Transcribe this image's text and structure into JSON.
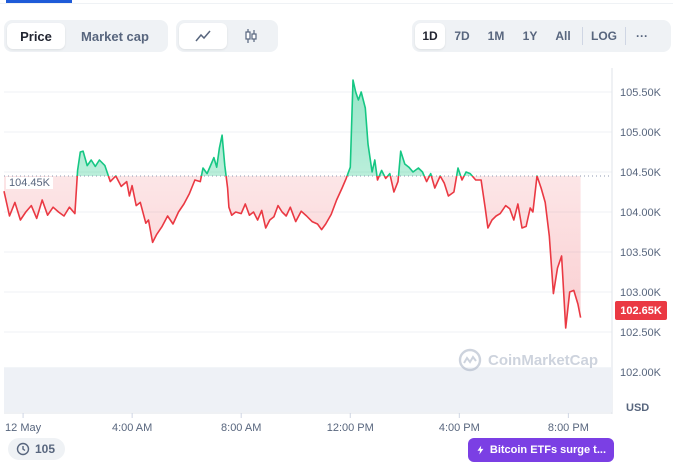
{
  "tabs": {
    "metric": [
      {
        "label": "Price",
        "active": true
      },
      {
        "label": "Market cap",
        "active": false
      }
    ],
    "chart_type_icons": [
      "line-chart-icon",
      "candlestick-icon"
    ],
    "ranges": [
      {
        "label": "1D",
        "active": true
      },
      {
        "label": "7D",
        "active": false
      },
      {
        "label": "1M",
        "active": false
      },
      {
        "label": "1Y",
        "active": false
      },
      {
        "label": "All",
        "active": false
      }
    ],
    "log_label": "LOG",
    "more_label": "···"
  },
  "price_tag": "102.65K",
  "open_tag": "104.45K",
  "currency_label": "USD",
  "watermark": "CoinMarketCap",
  "comments_count": "105",
  "news_pill": "Bitcoin ETFs surge t...",
  "colors": {
    "up": "#16c784",
    "down": "#ea3943",
    "accent": "#7b3fe4"
  },
  "chart_data": {
    "type": "line",
    "baseline": 104450,
    "ylim": [
      101500,
      105800
    ],
    "y_ticks": [
      {
        "label": "105.50K",
        "v": 105500
      },
      {
        "label": "105.00K",
        "v": 105000
      },
      {
        "label": "104.50K",
        "v": 104500
      },
      {
        "label": "104.00K",
        "v": 104000
      },
      {
        "label": "103.50K",
        "v": 103500
      },
      {
        "label": "103.00K",
        "v": 103000
      },
      {
        "label": "102.50K",
        "v": 102500
      },
      {
        "label": "102.00K",
        "v": 102000
      }
    ],
    "x_ticks": [
      {
        "label": "12 May",
        "h": 0
      },
      {
        "label": "4:00 AM",
        "h": 4
      },
      {
        "label": "8:00 AM",
        "h": 8
      },
      {
        "label": "12:00 PM",
        "h": 12
      },
      {
        "label": "4:00 PM",
        "h": 16
      },
      {
        "label": "8:00 PM",
        "h": 20
      }
    ],
    "x_range_hours": [
      -0.7,
      21.6
    ],
    "series": [
      {
        "points": [
          [
            -0.7,
            104260
          ],
          [
            -0.5,
            103950
          ],
          [
            -0.3,
            104120
          ],
          [
            -0.1,
            103900
          ],
          [
            0.1,
            104000
          ],
          [
            0.3,
            104080
          ],
          [
            0.5,
            103920
          ],
          [
            0.7,
            104150
          ],
          [
            0.9,
            103960
          ],
          [
            1.1,
            104060
          ],
          [
            1.3,
            104000
          ],
          [
            1.5,
            103950
          ],
          [
            1.7,
            104060
          ],
          [
            1.9,
            103980
          ],
          [
            2.0,
            104520
          ],
          [
            2.1,
            104750
          ],
          [
            2.2,
            104760
          ],
          [
            2.35,
            104580
          ],
          [
            2.5,
            104650
          ],
          [
            2.65,
            104570
          ],
          [
            2.8,
            104650
          ],
          [
            3.0,
            104580
          ],
          [
            3.2,
            104380
          ],
          [
            3.4,
            104450
          ],
          [
            3.6,
            104320
          ],
          [
            3.8,
            104380
          ],
          [
            3.9,
            104200
          ],
          [
            4.0,
            104330
          ],
          [
            4.15,
            104080
          ],
          [
            4.3,
            104120
          ],
          [
            4.5,
            103860
          ],
          [
            4.6,
            103900
          ],
          [
            4.75,
            103620
          ],
          [
            4.9,
            103720
          ],
          [
            5.1,
            103820
          ],
          [
            5.3,
            103950
          ],
          [
            5.5,
            103850
          ],
          [
            5.7,
            104000
          ],
          [
            5.9,
            104100
          ],
          [
            6.1,
            104230
          ],
          [
            6.3,
            104400
          ],
          [
            6.5,
            104380
          ],
          [
            6.6,
            104550
          ],
          [
            6.75,
            104480
          ],
          [
            6.9,
            104600
          ],
          [
            7.0,
            104680
          ],
          [
            7.1,
            104560
          ],
          [
            7.2,
            104800
          ],
          [
            7.3,
            104960
          ],
          [
            7.4,
            104580
          ],
          [
            7.5,
            104300
          ],
          [
            7.55,
            104060
          ],
          [
            7.65,
            103960
          ],
          [
            7.8,
            104000
          ],
          [
            8.0,
            103980
          ],
          [
            8.15,
            104100
          ],
          [
            8.3,
            103960
          ],
          [
            8.45,
            104000
          ],
          [
            8.6,
            103900
          ],
          [
            8.75,
            104020
          ],
          [
            8.9,
            103800
          ],
          [
            9.05,
            103900
          ],
          [
            9.2,
            103940
          ],
          [
            9.35,
            104080
          ],
          [
            9.5,
            104000
          ],
          [
            9.65,
            103950
          ],
          [
            9.8,
            104060
          ],
          [
            10.0,
            103880
          ],
          [
            10.2,
            104010
          ],
          [
            10.4,
            103950
          ],
          [
            10.6,
            103880
          ],
          [
            10.8,
            103850
          ],
          [
            10.95,
            103780
          ],
          [
            11.1,
            103850
          ],
          [
            11.3,
            103970
          ],
          [
            11.5,
            104150
          ],
          [
            11.7,
            104300
          ],
          [
            11.85,
            104420
          ],
          [
            12.0,
            104560
          ],
          [
            12.1,
            105650
          ],
          [
            12.2,
            105500
          ],
          [
            12.3,
            105400
          ],
          [
            12.4,
            105500
          ],
          [
            12.55,
            105300
          ],
          [
            12.65,
            104850
          ],
          [
            12.8,
            104500
          ],
          [
            12.9,
            104650
          ],
          [
            13.0,
            104400
          ],
          [
            13.15,
            104520
          ],
          [
            13.3,
            104420
          ],
          [
            13.45,
            104480
          ],
          [
            13.6,
            104250
          ],
          [
            13.75,
            104380
          ],
          [
            13.85,
            104760
          ],
          [
            14.0,
            104600
          ],
          [
            14.15,
            104560
          ],
          [
            14.3,
            104500
          ],
          [
            14.5,
            104550
          ],
          [
            14.65,
            104500
          ],
          [
            14.8,
            104380
          ],
          [
            14.95,
            104480
          ],
          [
            15.1,
            104300
          ],
          [
            15.3,
            104450
          ],
          [
            15.45,
            104360
          ],
          [
            15.6,
            104200
          ],
          [
            15.8,
            104250
          ],
          [
            15.95,
            104550
          ],
          [
            16.1,
            104400
          ],
          [
            16.25,
            104500
          ],
          [
            16.4,
            104480
          ],
          [
            16.6,
            104400
          ],
          [
            16.8,
            104400
          ],
          [
            16.95,
            104050
          ],
          [
            17.05,
            103800
          ],
          [
            17.2,
            103900
          ],
          [
            17.35,
            103950
          ],
          [
            17.5,
            103980
          ],
          [
            17.7,
            104080
          ],
          [
            17.85,
            104040
          ],
          [
            18.0,
            103900
          ],
          [
            18.15,
            104100
          ],
          [
            18.3,
            103800
          ],
          [
            18.45,
            103820
          ],
          [
            18.6,
            104050
          ],
          [
            18.7,
            104000
          ],
          [
            18.85,
            104450
          ],
          [
            19.0,
            104300
          ],
          [
            19.15,
            104120
          ],
          [
            19.3,
            103700
          ],
          [
            19.45,
            102980
          ],
          [
            19.6,
            103300
          ],
          [
            19.75,
            103450
          ],
          [
            19.9,
            102550
          ],
          [
            20.05,
            103000
          ],
          [
            20.2,
            103020
          ],
          [
            20.35,
            102850
          ],
          [
            20.45,
            102680
          ]
        ]
      }
    ],
    "volume_level": 0.13
  }
}
